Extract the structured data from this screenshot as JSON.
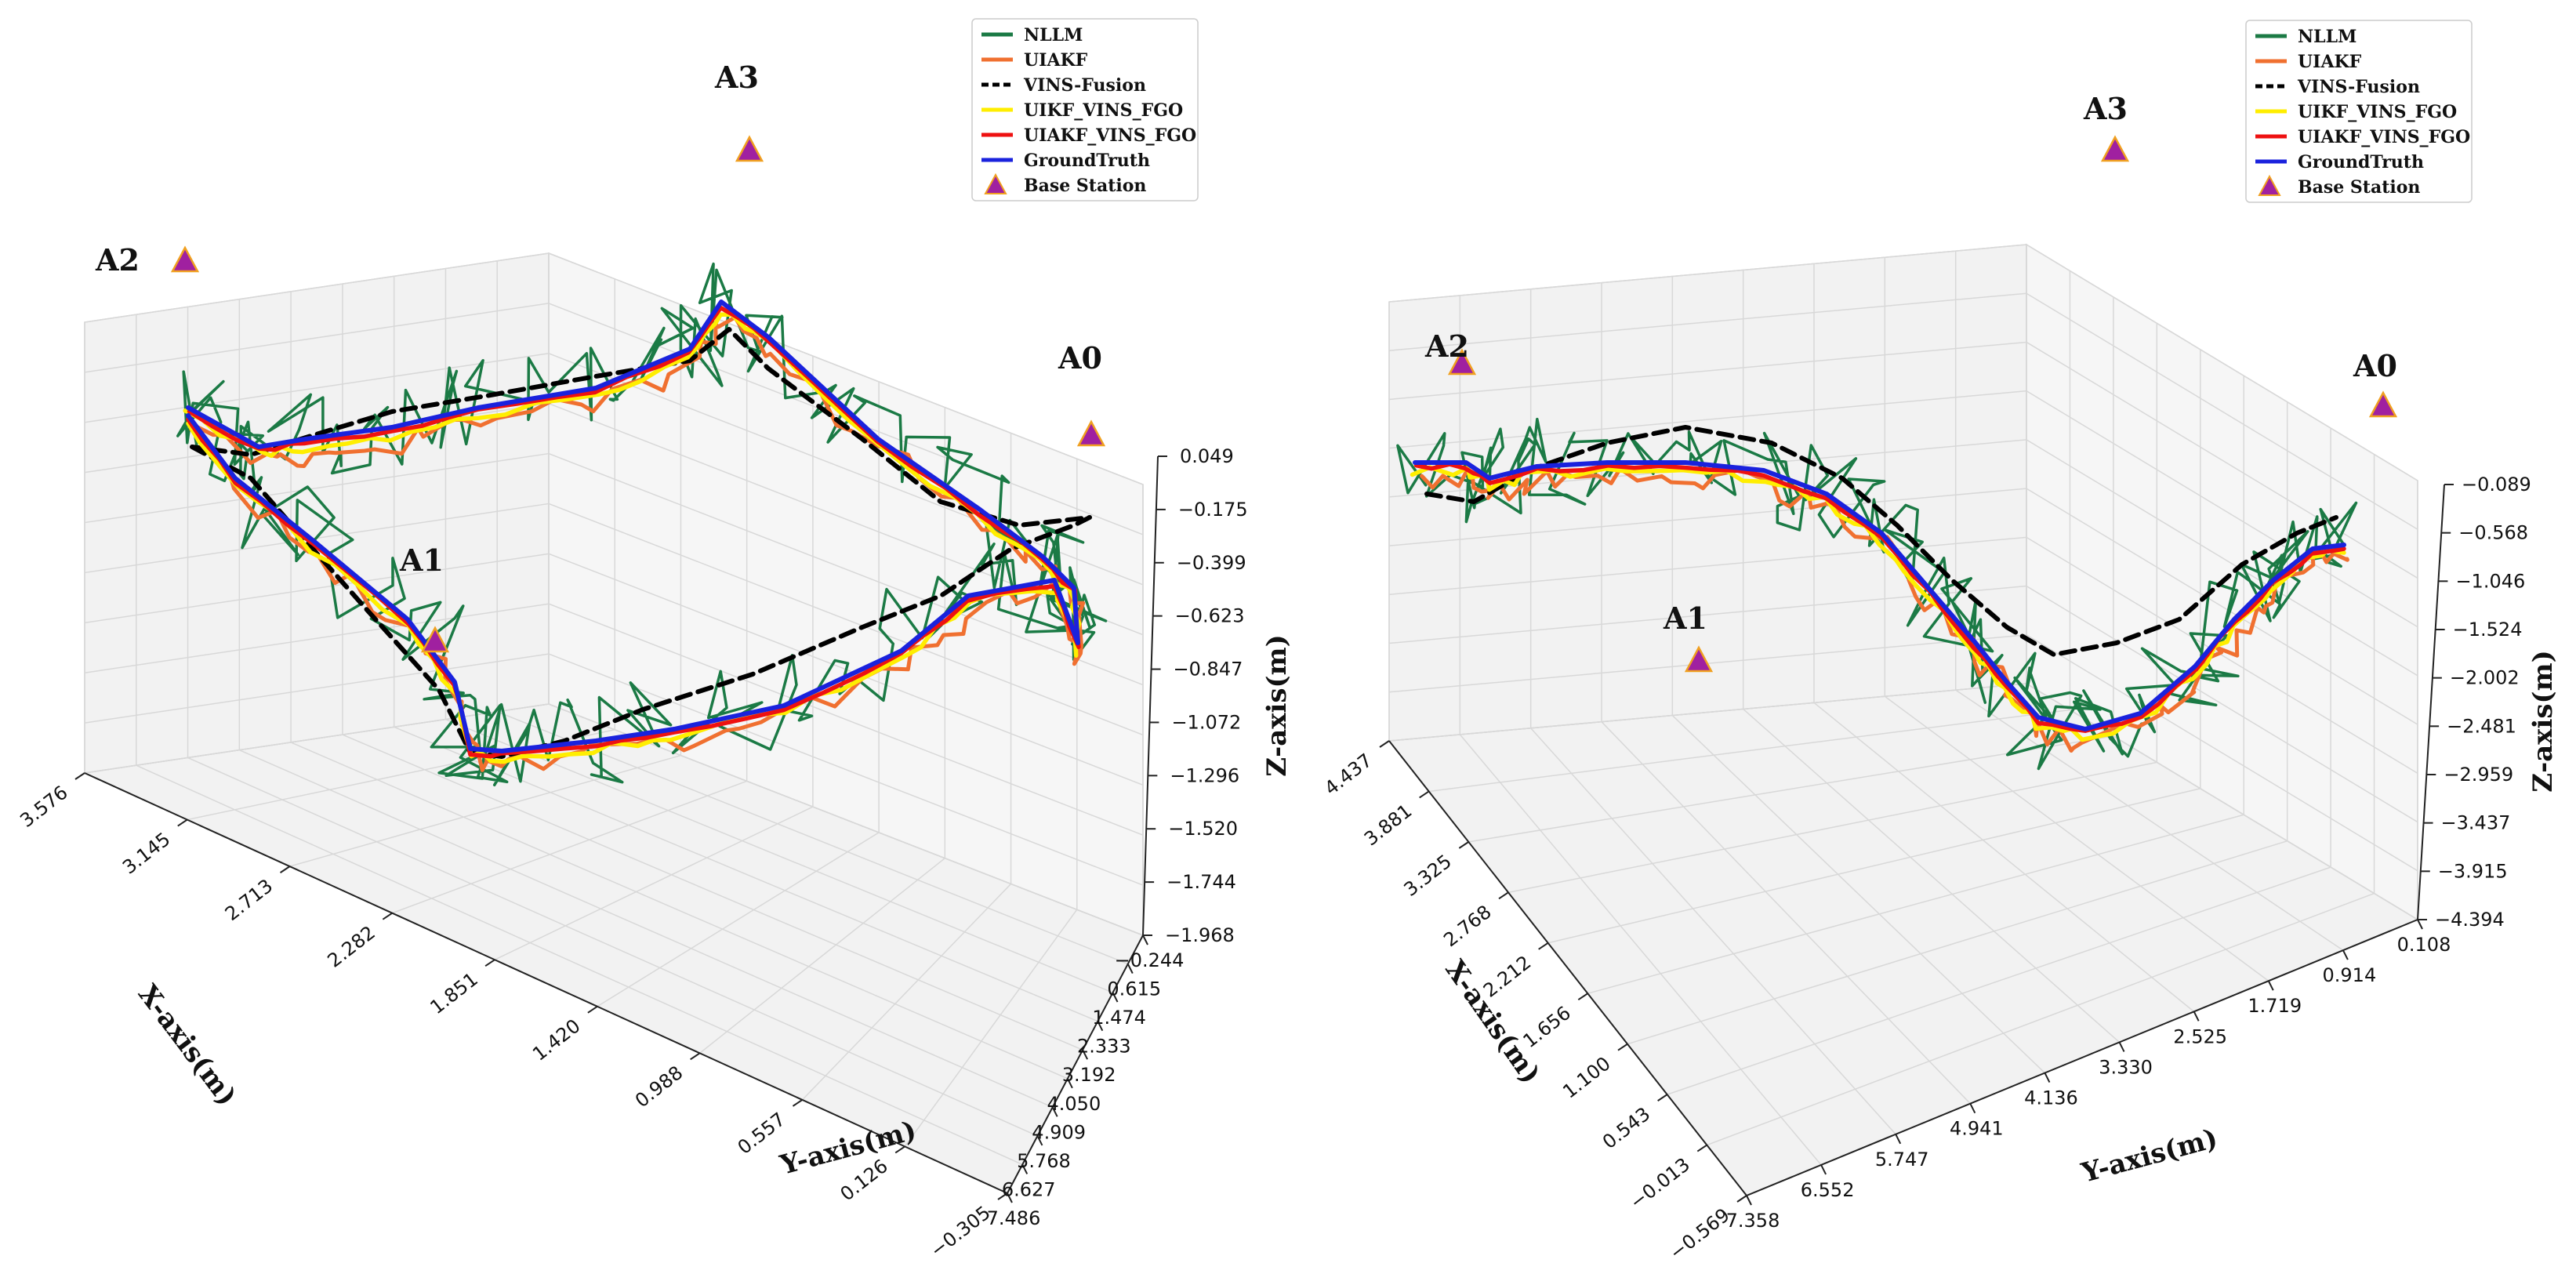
{
  "colors": {
    "NLLM": "#1b7a45",
    "UIAKF": "#f07030",
    "VINS-Fusion": "#000000",
    "UIKF_VINS_FGO": "#ffee00",
    "UIAKF_VINS_FGO": "#ee1111",
    "GroundTruth": "#1a22dd",
    "BaseStation": "#a020a0",
    "BaseStationEdge": "#f0a020",
    "pane": "#f2f2f2",
    "grid": "#d8d8d8"
  },
  "chart_data": [
    {
      "type": "line3d",
      "title": "",
      "xlabel": "X-axis(m)",
      "ylabel": "Y-axis(m)",
      "zlabel": "Z-axis(m)",
      "x_ticks": [
        "3.576",
        "3.145",
        "2.713",
        "2.282",
        "1.851",
        "1.420",
        "0.988",
        "0.557",
        "0.126",
        "−0.305"
      ],
      "y_ticks": [
        "7.486",
        "6.627",
        "5.768",
        "4.909",
        "4.050",
        "3.192",
        "2.333",
        "1.474",
        "0.615",
        "−0.244"
      ],
      "z_ticks": [
        "0.049",
        "−0.175",
        "−0.399",
        "−0.623",
        "−0.847",
        "−1.072",
        "−1.296",
        "−1.520",
        "−1.744",
        "−1.968"
      ],
      "xlim": [
        -0.305,
        3.576
      ],
      "ylim": [
        -0.244,
        7.486
      ],
      "zlim": [
        -1.968,
        0.049
      ],
      "legend": [
        "NLLM",
        "UIAKF",
        "VINS-Fusion",
        "UIKF_VINS_FGO",
        "UIAKF_VINS_FGO",
        "GroundTruth",
        "Base Station"
      ],
      "legend_position": "top-right",
      "base_stations": [
        {
          "label": "A0",
          "x": -0.2,
          "y": -0.2,
          "z": 0.05
        },
        {
          "label": "A1",
          "x": 1.5,
          "y": 6.5,
          "z": -1.9
        },
        {
          "label": "A2",
          "x": 3.5,
          "y": 7.4,
          "z": 0.05
        },
        {
          "label": "A3",
          "x": 3.5,
          "y": -0.2,
          "z": 0.05
        }
      ],
      "ground_truth_path": [
        [
          0.0,
          0.0,
          -0.6
        ],
        [
          0.0,
          2.0,
          -0.65
        ],
        [
          0.0,
          4.0,
          -0.65
        ],
        [
          0.0,
          6.0,
          -0.65
        ],
        [
          0.0,
          7.2,
          -0.7
        ],
        [
          1.5,
          7.2,
          -0.6
        ],
        [
          3.0,
          7.2,
          -0.5
        ],
        [
          3.1,
          5.5,
          -0.4
        ],
        [
          3.1,
          3.5,
          -0.3
        ],
        [
          3.1,
          1.5,
          -0.2
        ],
        [
          2.2,
          0.3,
          -0.3
        ],
        [
          1.0,
          0.1,
          -0.4
        ],
        [
          0.0,
          0.0,
          -0.6
        ]
      ]
    },
    {
      "type": "line3d",
      "title": "",
      "xlabel": "X-axis(m)",
      "ylabel": "Y-axis(m)",
      "zlabel": "Z-axis(m)",
      "x_ticks": [
        "4.437",
        "3.881",
        "3.325",
        "2.768",
        "2.212",
        "1.656",
        "1.100",
        "0.543",
        "−0.013",
        "−0.569"
      ],
      "y_ticks": [
        "7.358",
        "6.552",
        "5.747",
        "4.941",
        "4.136",
        "3.330",
        "2.525",
        "1.719",
        "0.914",
        "0.108"
      ],
      "z_ticks": [
        "−0.089",
        "−0.568",
        "−1.046",
        "−1.524",
        "−2.002",
        "−2.481",
        "−2.959",
        "−3.437",
        "−3.915",
        "−4.394"
      ],
      "xlim": [
        -0.569,
        4.437
      ],
      "ylim": [
        0.108,
        7.358
      ],
      "zlim": [
        -4.394,
        -0.089
      ],
      "legend": [
        "NLLM",
        "UIAKF",
        "VINS-Fusion",
        "UIKF_VINS_FGO",
        "UIAKF_VINS_FGO",
        "GroundTruth",
        "Base Station"
      ],
      "legend_position": "top-right",
      "base_stations": [
        {
          "label": "A0",
          "x": 0.0,
          "y": 0.2,
          "z": -0.1
        },
        {
          "label": "A1",
          "x": 2.0,
          "y": 6.5,
          "z": -4.3
        },
        {
          "label": "A2",
          "x": 4.3,
          "y": 7.2,
          "z": -0.1
        },
        {
          "label": "A3",
          "x": 4.3,
          "y": 0.2,
          "z": -0.1
        }
      ],
      "ground_truth_path": [
        [
          4.3,
          7.2,
          -0.9
        ],
        [
          3.8,
          6.4,
          -0.9
        ],
        [
          3.2,
          5.5,
          -0.9
        ],
        [
          2.6,
          4.9,
          -1.2
        ],
        [
          2.1,
          4.4,
          -2.4
        ],
        [
          1.6,
          3.9,
          -3.1
        ],
        [
          1.1,
          3.3,
          -3.0
        ],
        [
          0.6,
          2.6,
          -2.3
        ],
        [
          0.2,
          1.6,
          -1.4
        ],
        [
          0.1,
          0.9,
          -1.0
        ]
      ]
    }
  ]
}
